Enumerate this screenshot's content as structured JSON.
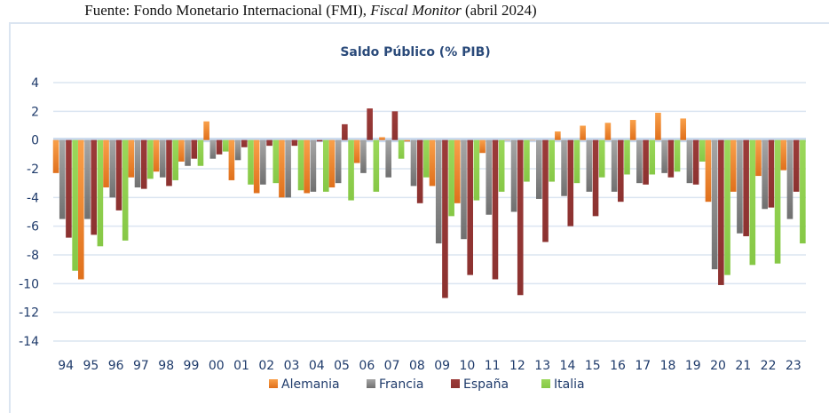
{
  "source": {
    "prefix": "Fuente: Fondo Monetario Internacional (FMI), ",
    "italic": "Fiscal Monitor",
    "suffix": " (abril 2024)"
  },
  "chart_data": {
    "type": "bar",
    "title": "Saldo Público (% PIB)",
    "xlabel": "",
    "ylabel": "",
    "ylim": [
      -14,
      4
    ],
    "yticks": [
      4,
      2,
      0,
      -2,
      -4,
      -6,
      -8,
      -10,
      -12,
      -14
    ],
    "grid": true,
    "legend_position": "bottom",
    "categories": [
      "94",
      "95",
      "96",
      "97",
      "98",
      "99",
      "00",
      "01",
      "02",
      "03",
      "04",
      "05",
      "06",
      "07",
      "08",
      "09",
      "10",
      "11",
      "12",
      "13",
      "14",
      "15",
      "16",
      "17",
      "18",
      "19",
      "20",
      "21",
      "22",
      "23"
    ],
    "series": [
      {
        "name": "Alemania",
        "color": "#f58b2a",
        "values": [
          -2.3,
          -9.7,
          -3.3,
          -2.6,
          -2.2,
          -1.5,
          1.3,
          -2.8,
          -3.7,
          -4.0,
          -3.7,
          -3.3,
          -1.6,
          0.2,
          -0.1,
          -3.2,
          -4.4,
          -0.9,
          0.0,
          0.0,
          0.6,
          1.0,
          1.2,
          1.4,
          1.9,
          1.5,
          -4.3,
          -3.6,
          -2.5,
          -2.1
        ]
      },
      {
        "name": "Francia",
        "color": "#8c8c8c",
        "values": [
          -5.5,
          -5.5,
          -4.0,
          -3.3,
          -2.6,
          -1.8,
          -1.3,
          -1.4,
          -3.1,
          -4.0,
          -3.6,
          -3.0,
          -2.3,
          -2.6,
          -3.2,
          -7.2,
          -6.9,
          -5.2,
          -5.0,
          -4.1,
          -3.9,
          -3.6,
          -3.6,
          -3.0,
          -2.3,
          -3.0,
          -9.0,
          -6.5,
          -4.8,
          -5.5
        ]
      },
      {
        "name": "España",
        "color": "#953735",
        "values": [
          -6.8,
          -6.6,
          -4.9,
          -3.4,
          -3.2,
          -1.3,
          -1.0,
          -0.5,
          -0.4,
          -0.4,
          -0.1,
          1.1,
          2.2,
          2.0,
          -4.4,
          -11.0,
          -9.4,
          -9.7,
          -10.8,
          -7.1,
          -6.0,
          -5.3,
          -4.3,
          -3.1,
          -2.6,
          -3.1,
          -10.1,
          -6.7,
          -4.7,
          -3.6
        ]
      },
      {
        "name": "Italia",
        "color": "#92d050",
        "values": [
          -9.1,
          -7.4,
          -7.0,
          -2.7,
          -2.8,
          -1.8,
          -0.8,
          -3.1,
          -3.0,
          -3.5,
          -3.6,
          -4.2,
          -3.6,
          -1.3,
          -2.6,
          -5.3,
          -4.2,
          -3.6,
          -2.9,
          -2.9,
          -3.0,
          -2.6,
          -2.4,
          -2.4,
          -2.2,
          -1.5,
          -9.4,
          -8.7,
          -8.6,
          -7.2
        ]
      }
    ]
  }
}
